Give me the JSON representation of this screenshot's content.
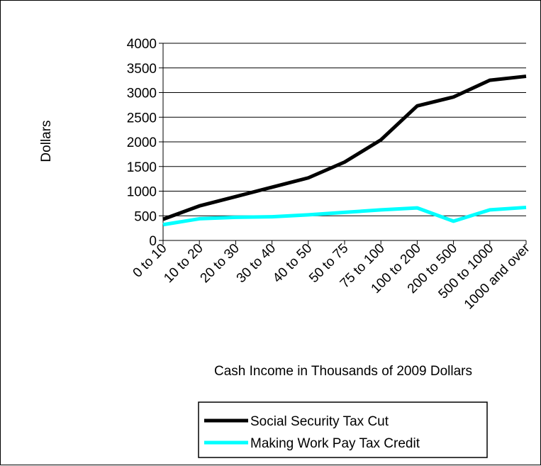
{
  "chart_data": {
    "type": "line",
    "title": "",
    "xlabel": "Cash Income in Thousands of 2009 Dollars",
    "ylabel": "Dollars",
    "ylim": [
      0,
      4000
    ],
    "yticks": [
      0,
      500,
      1000,
      1500,
      2000,
      2500,
      3000,
      3500,
      4000
    ],
    "grid": "horizontal",
    "legend": "bottom",
    "categories": [
      "0 to 10",
      "10 to 20",
      "20 to 30",
      "30 to 40",
      "40 to 50",
      "50 to 75",
      "75 to 100",
      "100 to 200",
      "200 to 500",
      "500 to 1000",
      "1000 and over"
    ],
    "series": [
      {
        "name": "Social Security Tax Cut",
        "color": "#000000",
        "values": [
          430,
          700,
          890,
          1080,
          1270,
          1590,
          2040,
          2730,
          2910,
          3250,
          3330
        ]
      },
      {
        "name": "Making Work Pay Tax Credit",
        "color": "#00ffff",
        "values": [
          320,
          440,
          470,
          480,
          520,
          570,
          620,
          660,
          390,
          620,
          670
        ]
      }
    ]
  }
}
